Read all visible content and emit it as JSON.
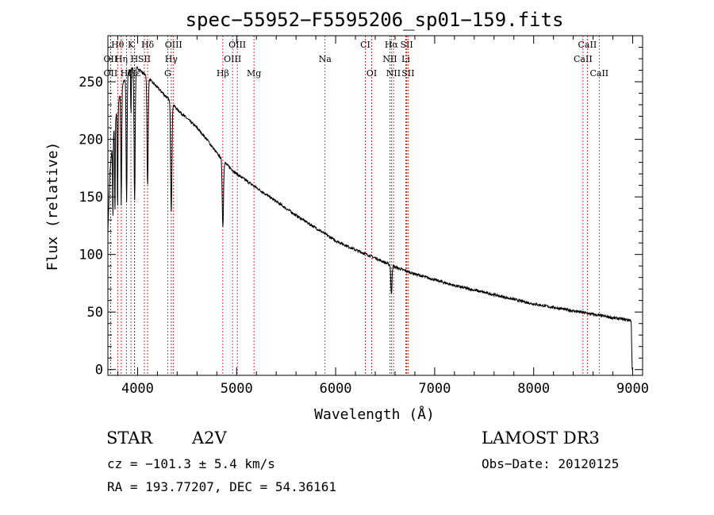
{
  "chart_data": {
    "type": "line",
    "title": "spec−55952−F5595206_sp01−159.fits",
    "xlabel": "Wavelength (Å)",
    "ylabel": "Flux (relative)",
    "xlim": [
      3700,
      9100
    ],
    "ylim": [
      -5,
      290
    ],
    "xticks": [
      4000,
      5000,
      6000,
      7000,
      8000,
      9000
    ],
    "yticks": [
      0,
      50,
      100,
      150,
      200,
      250
    ],
    "series": [
      {
        "name": "spectrum",
        "continuum": [
          [
            3700,
            120
          ],
          [
            3720,
            170
          ],
          [
            3750,
            200
          ],
          [
            3800,
            230
          ],
          [
            3850,
            248
          ],
          [
            3900,
            258
          ],
          [
            3950,
            262
          ],
          [
            4000,
            262
          ],
          [
            4050,
            258
          ],
          [
            4100,
            254
          ],
          [
            4200,
            245
          ],
          [
            4300,
            236
          ],
          [
            4400,
            226
          ],
          [
            4500,
            218
          ],
          [
            4600,
            210
          ],
          [
            4700,
            200
          ],
          [
            4800,
            188
          ],
          [
            4900,
            178
          ],
          [
            5000,
            170
          ],
          [
            5200,
            158
          ],
          [
            5400,
            146
          ],
          [
            5600,
            134
          ],
          [
            5800,
            123
          ],
          [
            6000,
            112
          ],
          [
            6200,
            104
          ],
          [
            6400,
            97
          ],
          [
            6600,
            89
          ],
          [
            6800,
            83
          ],
          [
            7000,
            78
          ],
          [
            7200,
            73
          ],
          [
            7400,
            69
          ],
          [
            7600,
            65
          ],
          [
            7800,
            61
          ],
          [
            8000,
            57
          ],
          [
            8200,
            54
          ],
          [
            8400,
            51
          ],
          [
            8600,
            48
          ],
          [
            8800,
            45
          ],
          [
            8970,
            43
          ],
          [
            8985,
            42
          ],
          [
            8995,
            0
          ]
        ],
        "absorption": [
          {
            "center": 3750,
            "depth": 70,
            "width": 4
          },
          {
            "center": 3771,
            "depth": 80,
            "width": 4
          },
          {
            "center": 3798,
            "depth": 90,
            "width": 5
          },
          {
            "center": 3835,
            "depth": 100,
            "width": 6
          },
          {
            "center": 3889,
            "depth": 110,
            "width": 7
          },
          {
            "center": 3933,
            "depth": 40,
            "width": 4
          },
          {
            "center": 3970,
            "depth": 115,
            "width": 8
          },
          {
            "center": 4101,
            "depth": 95,
            "width": 8
          },
          {
            "center": 4340,
            "depth": 95,
            "width": 9
          },
          {
            "center": 4861,
            "depth": 58,
            "width": 9
          },
          {
            "center": 6563,
            "depth": 25,
            "width": 8
          }
        ]
      }
    ],
    "spectral_lines": [
      {
        "label": "Hθ",
        "wl": 3798,
        "row": 0
      },
      {
        "label": "Hη",
        "wl": 3835,
        "row": 1
      },
      {
        "label": "K",
        "wl": 3933,
        "row": 0
      },
      {
        "label": "Hδ",
        "wl": 4101,
        "row": 0
      },
      {
        "label": "OII",
        "wl": 3727,
        "row": 1
      },
      {
        "label": "OII",
        "wl": 3727,
        "row": 2
      },
      {
        "label": "Hζ",
        "wl": 3889,
        "row": 2
      },
      {
        "label": "H",
        "wl": 3968,
        "row": 1
      },
      {
        "label": "SII",
        "wl": 4068,
        "row": 1
      },
      {
        "label": "Hε",
        "wl": 3970,
        "row": 2
      },
      {
        "label": "OIII",
        "wl": 4363,
        "row": 0
      },
      {
        "label": "Hγ",
        "wl": 4340,
        "row": 1
      },
      {
        "label": "G",
        "wl": 4304,
        "row": 2
      },
      {
        "label": "OIII",
        "wl": 5007,
        "row": 0
      },
      {
        "label": "OIII",
        "wl": 4959,
        "row": 1
      },
      {
        "label": "Hβ",
        "wl": 4861,
        "row": 2
      },
      {
        "label": "Mg",
        "wl": 5175,
        "row": 2
      },
      {
        "label": "Na",
        "wl": 5893,
        "row": 1
      },
      {
        "label": "CI",
        "wl": 6300,
        "row": 0
      },
      {
        "label": "OI",
        "wl": 6364,
        "row": 2
      },
      {
        "label": "Hα",
        "wl": 6563,
        "row": 0
      },
      {
        "label": "SII",
        "wl": 6717,
        "row": 0
      },
      {
        "label": "NII",
        "wl": 6548,
        "row": 1
      },
      {
        "label": "Li",
        "wl": 6708,
        "row": 1
      },
      {
        "label": "NII",
        "wl": 6584,
        "row": 2
      },
      {
        "label": "SII",
        "wl": 6731,
        "row": 2
      },
      {
        "label": "CaII",
        "wl": 8542,
        "row": 0
      },
      {
        "label": "CaII",
        "wl": 8498,
        "row": 1
      },
      {
        "label": "CaII",
        "wl": 8662,
        "row": 2
      }
    ]
  },
  "info": {
    "class": "STAR",
    "subclass": "A2V",
    "survey": "LAMOST DR3",
    "cz": "cz = −101.3 ± 5.4 km/s",
    "obs_date": "Obs−Date: 20120125",
    "coords": "RA = 193.77207, DEC =  54.36161"
  },
  "colors": {
    "spectrum": "#000000",
    "line_marker": "#cc0000"
  }
}
